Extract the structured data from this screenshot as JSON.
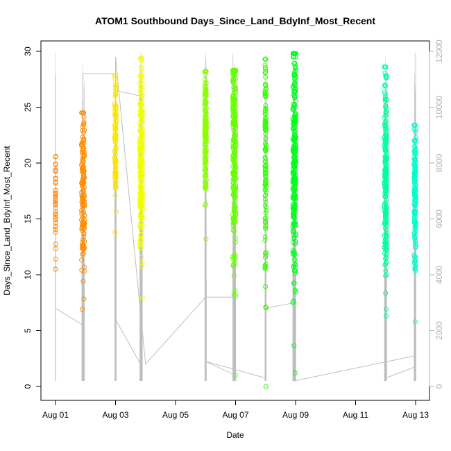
{
  "chart_data": {
    "type": "scatter",
    "title": "ATOM1 Southbound Days_Since_Land_BdyInf_Most_Recent",
    "xlabel": "Date",
    "ylabel": "Days_Since_Land_BdyInf_Most_Recent",
    "xlim": [
      "2019-08-01",
      "2019-08-13"
    ],
    "ylim": [
      0,
      30
    ],
    "y2lim": [
      0,
      12000
    ],
    "x_ticks": [
      {
        "date": "2019-08-01",
        "label": "Aug 01"
      },
      {
        "date": "2019-08-03",
        "label": "Aug 03"
      },
      {
        "date": "2019-08-05",
        "label": "Aug 05"
      },
      {
        "date": "2019-08-07",
        "label": "Aug 07"
      },
      {
        "date": "2019-08-09",
        "label": "Aug 09"
      },
      {
        "date": "2019-08-11",
        "label": "Aug 11"
      },
      {
        "date": "2019-08-13",
        "label": "Aug 13"
      }
    ],
    "y_ticks": [
      0,
      5,
      10,
      15,
      20,
      25,
      30
    ],
    "y2_ticks": [
      0,
      2000,
      4000,
      6000,
      8000,
      10000,
      12000
    ],
    "grid": false,
    "point_shape": "open-circle",
    "secondary_line_color": "#bebebe",
    "clusters": [
      {
        "date": "2019-08-01 00:00",
        "spread_hours": 0.3,
        "y_min": 10.5,
        "y_max": 20.6,
        "center": 16.5,
        "n": 45,
        "color": "#ff8c1a"
      },
      {
        "date": "2019-08-01 22:00",
        "spread_hours": 2.5,
        "y_min": 6.9,
        "y_max": 24.5,
        "center": 18,
        "n": 150,
        "color": "#ff8c00"
      },
      {
        "date": "2019-08-03 00:00",
        "spread_hours": 1.2,
        "y_min": 13.8,
        "y_max": 27.8,
        "center": 22,
        "n": 110,
        "color": "#ffe600"
      },
      {
        "date": "2019-08-03 20:30",
        "spread_hours": 2.2,
        "y_min": 7.9,
        "y_max": 29.4,
        "center": 20,
        "n": 230,
        "color": "#f0ff00"
      },
      {
        "date": "2019-08-06 00:00",
        "spread_hours": 1.3,
        "y_min": 13.2,
        "y_max": 28.2,
        "center": 23,
        "n": 170,
        "color": "#8cff00"
      },
      {
        "date": "2019-08-06 23:00",
        "spread_hours": 2.5,
        "y_min": 1.0,
        "y_max": 28.3,
        "center": 22,
        "n": 260,
        "color": "#66ff00"
      },
      {
        "date": "2019-08-08 00:00",
        "spread_hours": 1.0,
        "y_min": 0.0,
        "y_max": 29.3,
        "center": 21,
        "n": 130,
        "color": "#33ff00"
      },
      {
        "date": "2019-08-08 23:00",
        "spread_hours": 2.5,
        "y_min": 1.2,
        "y_max": 29.8,
        "center": 21,
        "n": 280,
        "color": "#00ff1a"
      },
      {
        "date": "2019-08-12 00:00",
        "spread_hours": 1.8,
        "y_min": 6.3,
        "y_max": 28.6,
        "center": 19,
        "n": 240,
        "color": "#00ffa0"
      },
      {
        "date": "2019-08-12 23:30",
        "spread_hours": 1.5,
        "y_min": 5.8,
        "y_max": 23.4,
        "center": 17,
        "n": 150,
        "color": "#00ffcc"
      }
    ],
    "secondary_line": [
      {
        "date": "2019-08-01 00:00",
        "y2": 11200
      },
      {
        "date": "2019-08-01 00:00",
        "y2": 2800
      },
      {
        "date": "2019-08-01 22:00",
        "y2": 2200
      },
      {
        "date": "2019-08-01 22:00",
        "y2": 11200
      },
      {
        "date": "2019-08-03 00:00",
        "y2": 11200
      },
      {
        "date": "2019-08-03 00:00",
        "y2": 10600
      },
      {
        "date": "2019-08-03 20:00",
        "y2": 10400
      },
      {
        "date": "2019-08-03 20:00",
        "y2": 800
      },
      {
        "date": "2019-08-03 00:00",
        "y2": 2400
      },
      {
        "date": "2019-08-03 00:00",
        "y2": 11800
      },
      {
        "date": "2019-08-04 00:00",
        "y2": 800
      },
      {
        "date": "2019-08-06 00:00",
        "y2": 3200
      },
      {
        "date": "2019-08-07 00:00",
        "y2": 3200
      },
      {
        "date": "2019-08-07 00:00",
        "y2": 400
      },
      {
        "date": "2019-08-06 00:00",
        "y2": 900
      },
      {
        "date": "2019-08-08 00:00",
        "y2": 300
      },
      {
        "date": "2019-08-08 00:00",
        "y2": 2800
      },
      {
        "date": "2019-08-08 23:00",
        "y2": 3000
      },
      {
        "date": "2019-08-08 23:00",
        "y2": 200
      },
      {
        "date": "2019-08-12 23:30",
        "y2": 1100
      },
      {
        "date": "2019-08-12 23:30",
        "y2": 700
      },
      {
        "date": "2019-08-12 00:00",
        "y2": 300
      },
      {
        "date": "2019-08-12 00:00",
        "y2": 1000
      }
    ]
  }
}
